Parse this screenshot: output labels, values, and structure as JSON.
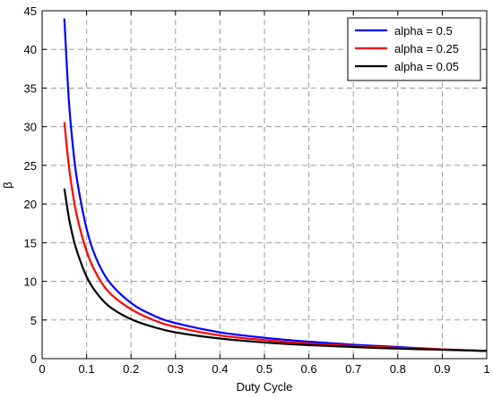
{
  "chart_data": {
    "type": "line",
    "title": "",
    "xlabel": "Duty Cycle",
    "ylabel": "β",
    "xlim": [
      0,
      1
    ],
    "ylim": [
      0,
      45
    ],
    "x_ticks": [
      "0",
      "0.1",
      "0.2",
      "0.3",
      "0.4",
      "0.5",
      "0.6",
      "0.7",
      "0.8",
      "0.9",
      "1"
    ],
    "y_ticks": [
      "0",
      "5",
      "10",
      "15",
      "20",
      "25",
      "30",
      "35",
      "40",
      "45"
    ],
    "grid": true,
    "legend_position": "top-right",
    "x": [
      0.05,
      0.06,
      0.07,
      0.08,
      0.1,
      0.12,
      0.15,
      0.2,
      0.25,
      0.3,
      0.4,
      0.5,
      0.6,
      0.7,
      0.8,
      0.9,
      1.0
    ],
    "series": [
      {
        "name": "alpha = 0.5",
        "color": "#0000ff",
        "values": [
          44.0,
          33.5,
          27.0,
          22.6,
          16.8,
          13.2,
          10.0,
          7.2,
          5.6,
          4.6,
          3.4,
          2.7,
          2.2,
          1.8,
          1.5,
          1.2,
          1.0
        ]
      },
      {
        "name": "alpha = 0.25",
        "color": "#ff0000",
        "values": [
          30.6,
          25.0,
          21.0,
          18.0,
          13.9,
          11.2,
          8.6,
          6.4,
          5.0,
          4.1,
          3.0,
          2.4,
          1.95,
          1.65,
          1.4,
          1.2,
          1.0
        ]
      },
      {
        "name": "alpha = 0.05",
        "color": "#000000",
        "values": [
          22.0,
          18.3,
          15.6,
          13.6,
          10.6,
          8.7,
          6.8,
          5.1,
          4.1,
          3.4,
          2.6,
          2.1,
          1.75,
          1.5,
          1.3,
          1.15,
          1.0
        ]
      }
    ]
  }
}
